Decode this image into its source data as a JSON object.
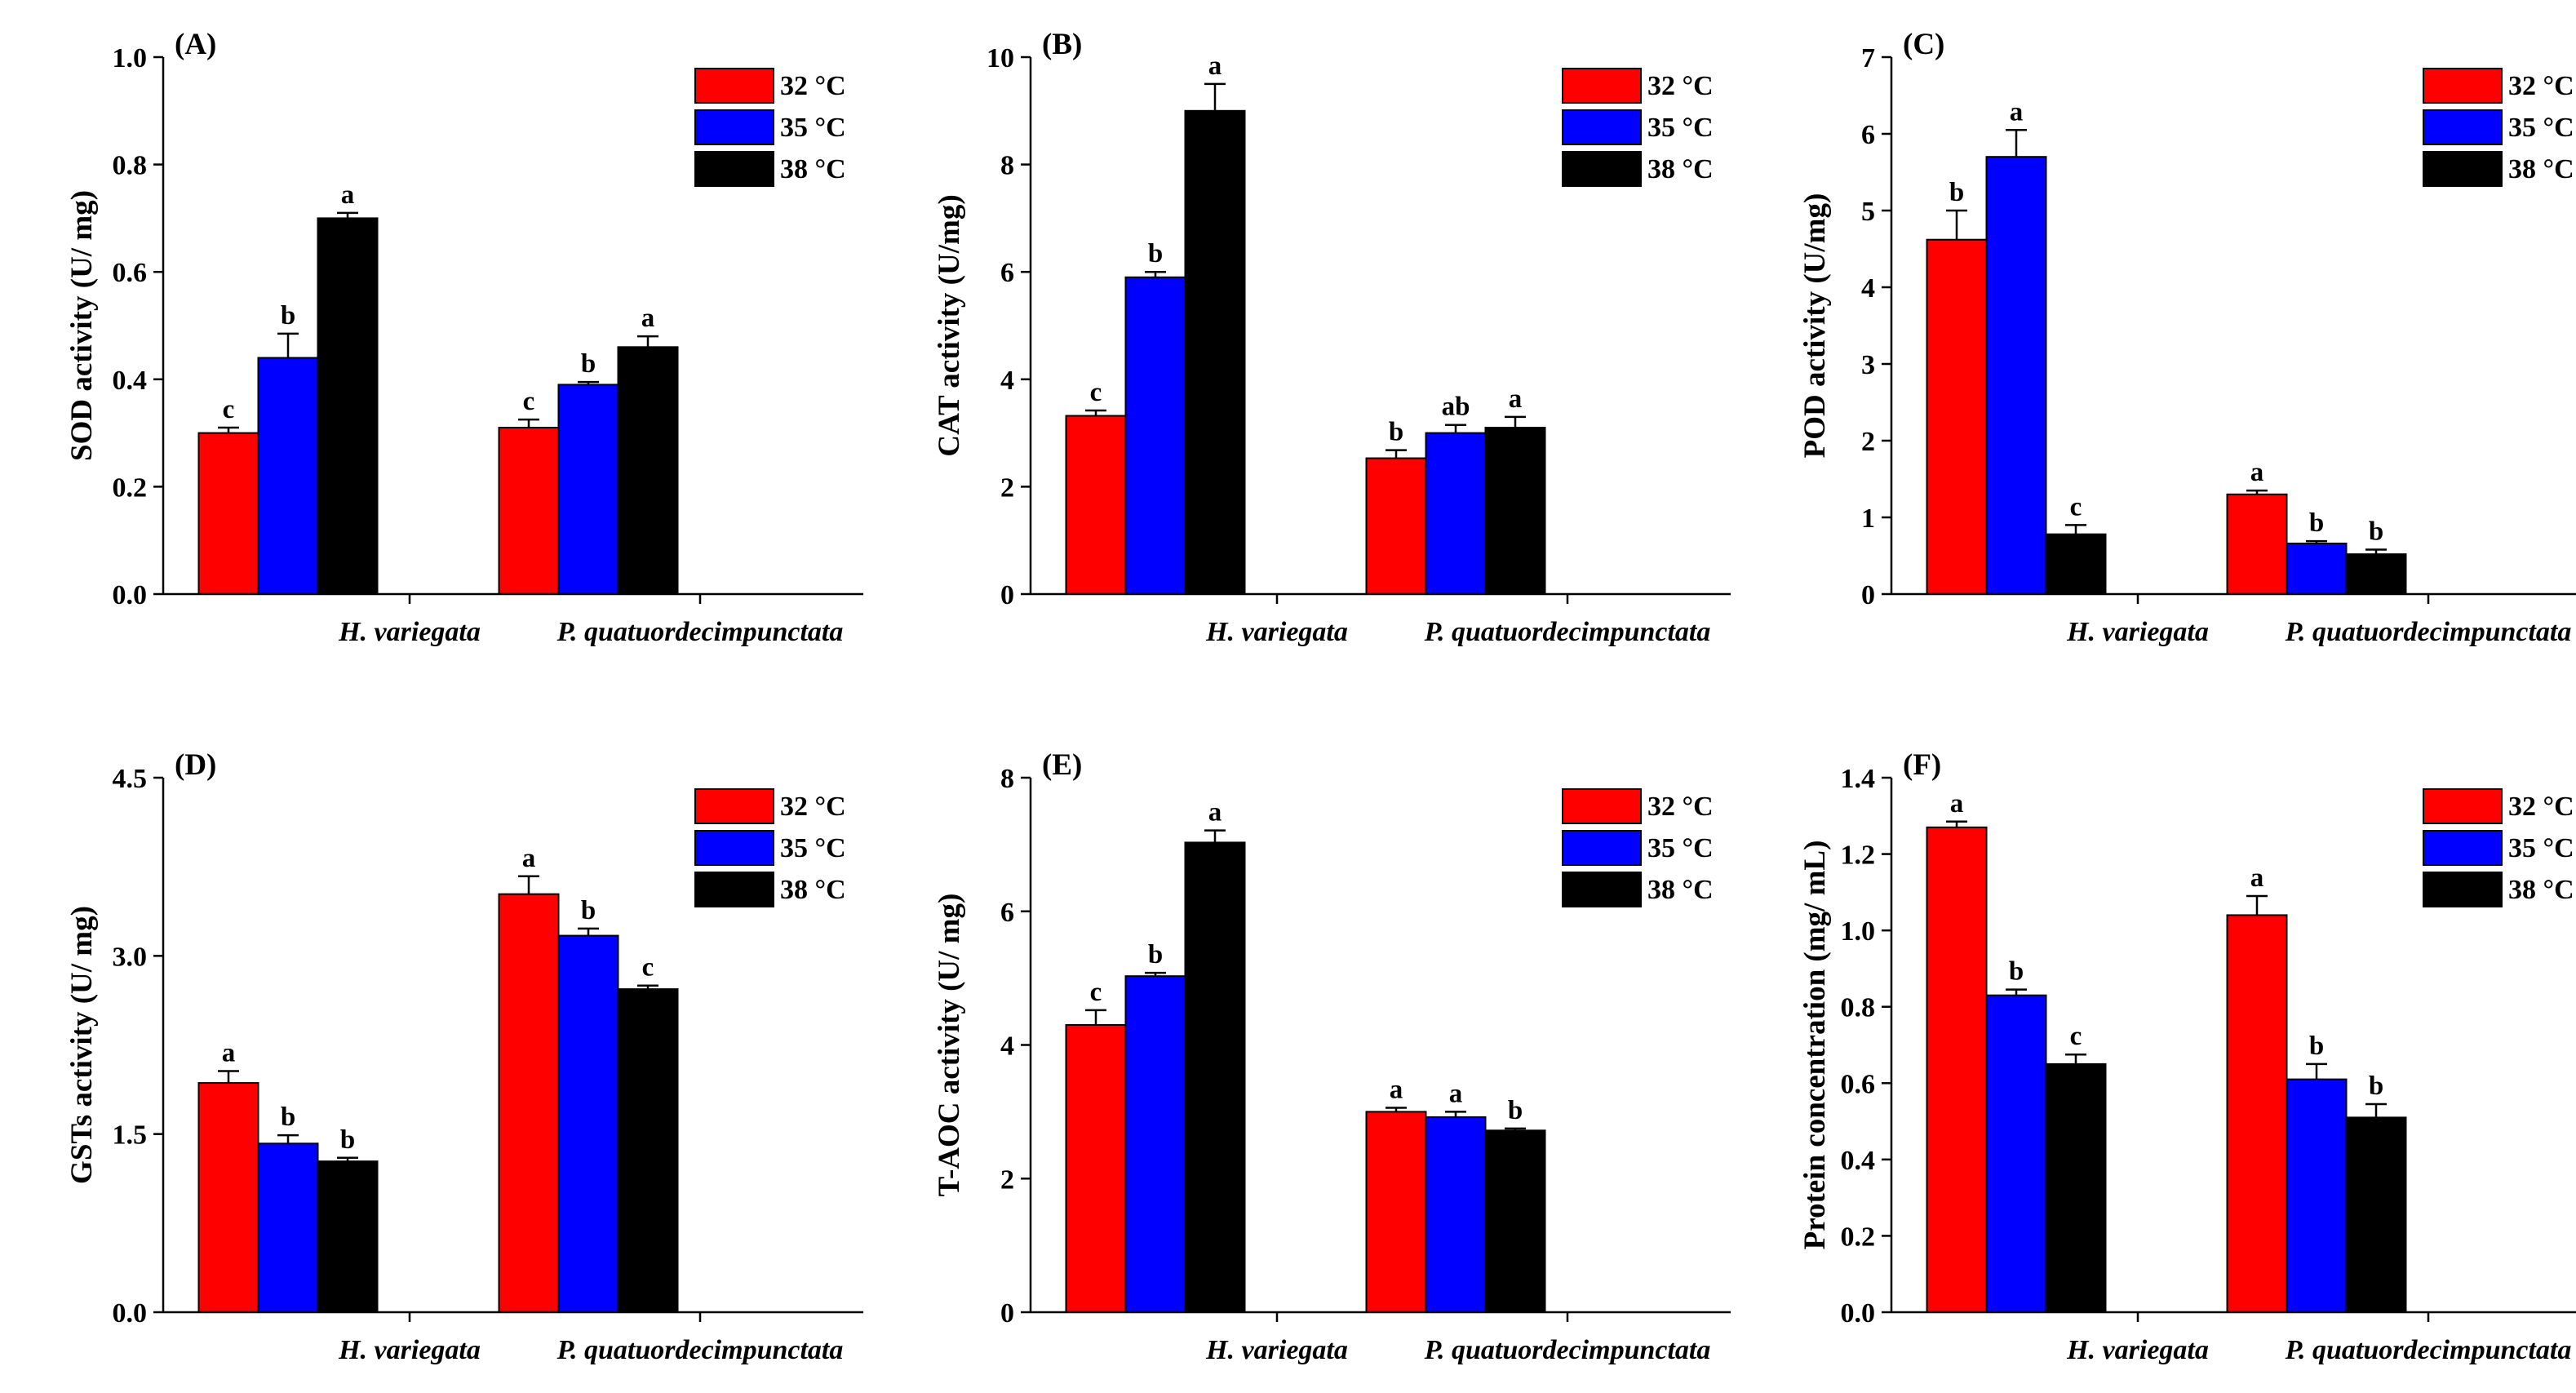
{
  "chart_data": [
    {
      "type": "bar",
      "panel_label": "(A)",
      "ylabel": "SOD activity (U/ mg)",
      "ylim": [
        0,
        1.0
      ],
      "yticks": [
        "0.0",
        "0.2",
        "0.4",
        "0.6",
        "0.8",
        "1.0"
      ],
      "categories": [
        "H. variegata",
        "P. quatuordecimpunctata"
      ],
      "legend": "top-right",
      "series": [
        {
          "name": "32 °C",
          "color": "#ff0000",
          "values": [
            0.3,
            0.31
          ],
          "errors": [
            0.01,
            0.015
          ],
          "letters": [
            "c",
            "c"
          ]
        },
        {
          "name": "35 °C",
          "color": "#0000ff",
          "values": [
            0.44,
            0.39
          ],
          "errors": [
            0.045,
            0.005
          ],
          "letters": [
            "b",
            "b"
          ]
        },
        {
          "name": "38 °C",
          "color": "#000000",
          "values": [
            0.7,
            0.46
          ],
          "errors": [
            0.01,
            0.02
          ],
          "letters": [
            "a",
            "a"
          ]
        }
      ]
    },
    {
      "type": "bar",
      "panel_label": "(B)",
      "ylabel": "CAT activity (U/mg)",
      "ylim": [
        0,
        10
      ],
      "yticks": [
        "0",
        "2",
        "4",
        "6",
        "8",
        "10"
      ],
      "categories": [
        "H. variegata",
        "P. quatuordecimpunctata"
      ],
      "legend": "top-right",
      "series": [
        {
          "name": "32 °C",
          "color": "#ff0000",
          "values": [
            3.32,
            2.53
          ],
          "errors": [
            0.1,
            0.15
          ],
          "letters": [
            "c",
            "b"
          ]
        },
        {
          "name": "35 °C",
          "color": "#0000ff",
          "values": [
            5.9,
            3.0
          ],
          "errors": [
            0.1,
            0.15
          ],
          "letters": [
            "b",
            "ab"
          ]
        },
        {
          "name": "38 °C",
          "color": "#000000",
          "values": [
            9.0,
            3.1
          ],
          "errors": [
            0.5,
            0.2
          ],
          "letters": [
            "a",
            "a"
          ]
        }
      ]
    },
    {
      "type": "bar",
      "panel_label": "(C)",
      "ylabel": "POD activity (U/mg)",
      "ylim": [
        0,
        7
      ],
      "yticks": [
        "0",
        "1",
        "2",
        "3",
        "4",
        "5",
        "6",
        "7"
      ],
      "categories": [
        "H. variegata",
        "P. quatuordecimpunctata"
      ],
      "legend": "top-right",
      "series": [
        {
          "name": "32 °C",
          "color": "#ff0000",
          "values": [
            4.62,
            1.3
          ],
          "errors": [
            0.38,
            0.05
          ],
          "letters": [
            "b",
            "a"
          ]
        },
        {
          "name": "35 °C",
          "color": "#0000ff",
          "values": [
            5.7,
            0.66
          ],
          "errors": [
            0.35,
            0.03
          ],
          "letters": [
            "a",
            "b"
          ]
        },
        {
          "name": "38 °C",
          "color": "#000000",
          "values": [
            0.78,
            0.52
          ],
          "errors": [
            0.12,
            0.06
          ],
          "letters": [
            "c",
            "b"
          ]
        }
      ]
    },
    {
      "type": "bar",
      "panel_label": "(D)",
      "ylabel": "GSTs activity (U/ mg)",
      "ylim": [
        0,
        4.5
      ],
      "yticks": [
        "0.0",
        "1.5",
        "3.0",
        "4.5"
      ],
      "categories": [
        "H. variegata",
        "P. quatuordecimpunctata"
      ],
      "legend": "top-right",
      "series": [
        {
          "name": "32 °C",
          "color": "#ff0000",
          "values": [
            1.93,
            3.52
          ],
          "errors": [
            0.1,
            0.15
          ],
          "letters": [
            "a",
            "a"
          ]
        },
        {
          "name": "35 °C",
          "color": "#0000ff",
          "values": [
            1.42,
            3.17
          ],
          "errors": [
            0.07,
            0.06
          ],
          "letters": [
            "b",
            "b"
          ]
        },
        {
          "name": "38 °C",
          "color": "#000000",
          "values": [
            1.27,
            2.72
          ],
          "errors": [
            0.03,
            0.03
          ],
          "letters": [
            "b",
            "c"
          ]
        }
      ]
    },
    {
      "type": "bar",
      "panel_label": "(E)",
      "ylabel": "T-AOC activity (U/ mg)",
      "ylim": [
        0,
        8
      ],
      "yticks": [
        "0",
        "2",
        "4",
        "6",
        "8"
      ],
      "categories": [
        "H. variegata",
        "P. quatuordecimpunctata"
      ],
      "legend": "top-right",
      "series": [
        {
          "name": "32 °C",
          "color": "#ff0000",
          "values": [
            4.3,
            3.0
          ],
          "errors": [
            0.22,
            0.06
          ],
          "letters": [
            "c",
            "a"
          ]
        },
        {
          "name": "35 °C",
          "color": "#0000ff",
          "values": [
            5.03,
            2.92
          ],
          "errors": [
            0.05,
            0.08
          ],
          "letters": [
            "b",
            "a"
          ]
        },
        {
          "name": "38 °C",
          "color": "#000000",
          "values": [
            7.03,
            2.72
          ],
          "errors": [
            0.18,
            0.03
          ],
          "letters": [
            "a",
            "b"
          ]
        }
      ]
    },
    {
      "type": "bar",
      "panel_label": "(F)",
      "ylabel": "Protein concentration (mg/ mL)",
      "ylim": [
        0,
        1.4
      ],
      "yticks": [
        "0.0",
        "0.2",
        "0.4",
        "0.6",
        "0.8",
        "1.0",
        "1.2",
        "1.4"
      ],
      "categories": [
        "H. variegata",
        "P. quatuordecimpunctata"
      ],
      "legend": "top-right",
      "series": [
        {
          "name": "32 °C",
          "color": "#ff0000",
          "values": [
            1.27,
            1.04
          ],
          "errors": [
            0.015,
            0.05
          ],
          "letters": [
            "a",
            "a"
          ]
        },
        {
          "name": "35 °C",
          "color": "#0000ff",
          "values": [
            0.83,
            0.61
          ],
          "errors": [
            0.015,
            0.04
          ],
          "letters": [
            "b",
            "b"
          ]
        },
        {
          "name": "38 °C",
          "color": "#000000",
          "values": [
            0.65,
            0.51
          ],
          "errors": [
            0.025,
            0.035
          ],
          "letters": [
            "c",
            "b"
          ]
        }
      ]
    }
  ]
}
